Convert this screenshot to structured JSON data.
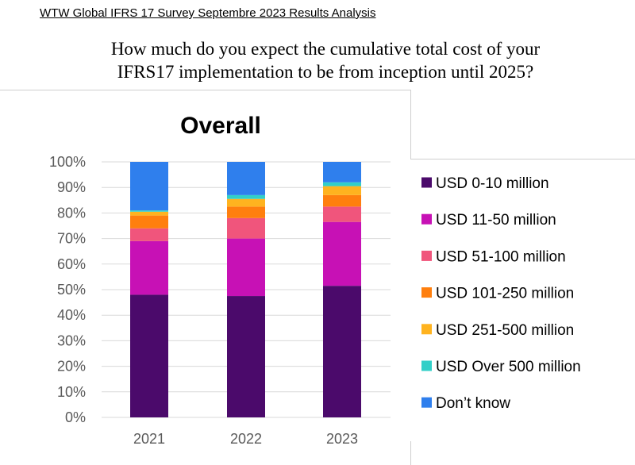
{
  "header": {
    "text": "WTW Global IFRS 17 Survey Septembre 2023 Results Analysis"
  },
  "question": {
    "line1": "How much do you expect the cumulative total cost of your",
    "line2": "IFRS17 implementation to be from inception until 2025?"
  },
  "chart_data": {
    "type": "bar",
    "stacked": true,
    "title": "Overall",
    "xlabel": "",
    "ylabel": "",
    "categories": [
      "2021",
      "2022",
      "2023"
    ],
    "ylim": [
      0,
      100
    ],
    "yticks": [
      "0%",
      "10%",
      "20%",
      "30%",
      "40%",
      "50%",
      "60%",
      "70%",
      "80%",
      "90%",
      "100%"
    ],
    "grid": true,
    "legend_position": "right",
    "series": [
      {
        "name": "USD 0-10 million",
        "color": "#4B0A6B",
        "values": [
          48,
          47.5,
          51.5
        ]
      },
      {
        "name": "USD 11-50 million",
        "color": "#C711B5",
        "values": [
          21,
          22.5,
          25
        ]
      },
      {
        "name": "USD 51-100 million",
        "color": "#F0557C",
        "values": [
          5,
          8,
          6
        ]
      },
      {
        "name": "USD 101-250 million",
        "color": "#FF7F0E",
        "values": [
          5,
          4.5,
          4.5
        ]
      },
      {
        "name": "USD 251-500 million",
        "color": "#FFB31F",
        "values": [
          1.5,
          3,
          3.5
        ]
      },
      {
        "name": "USD Over 500 million",
        "color": "#32CFC8",
        "values": [
          0.5,
          1.5,
          1.5
        ]
      },
      {
        "name": "Don’t know",
        "color": "#2F7FED",
        "values": [
          19,
          13,
          8
        ]
      }
    ]
  }
}
